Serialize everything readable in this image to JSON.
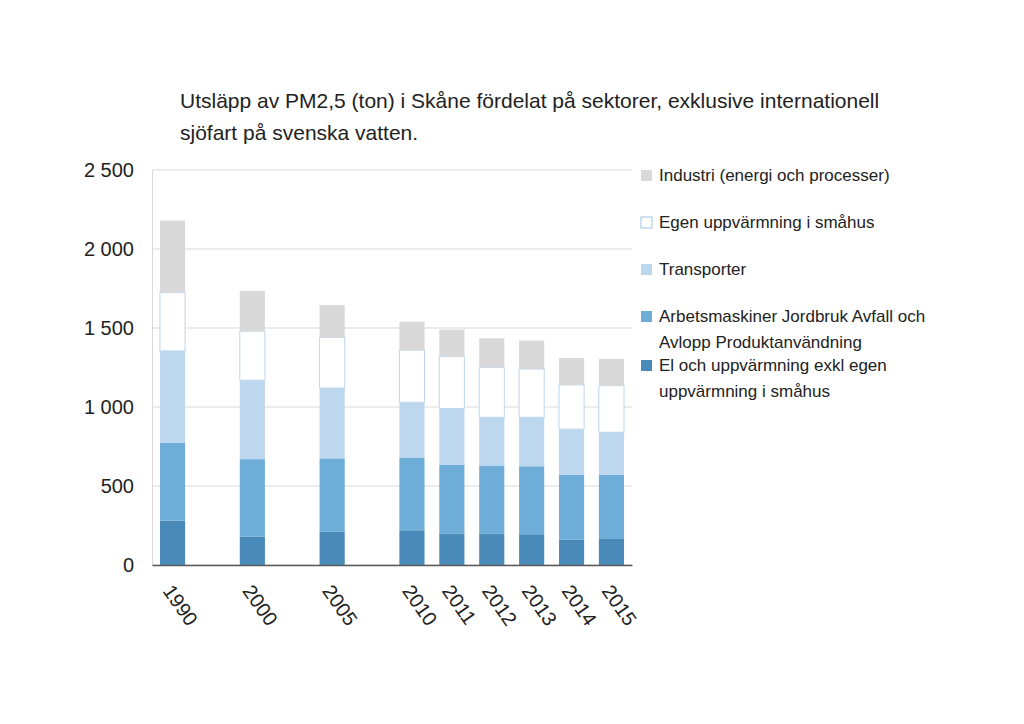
{
  "chart_data": {
    "type": "bar",
    "stacked": true,
    "grid": true,
    "legend": "right",
    "title": "Utsläpp av PM2,5 (ton) i Skåne fördelat på sektorer, exklusive internationell sjöfart på svenska vatten.",
    "categories": [
      "1990",
      null,
      "2000",
      null,
      "2005",
      null,
      "2010",
      "2011",
      "2012",
      "2013",
      "2014",
      "2015"
    ],
    "ylim": [
      0,
      2500
    ],
    "yticks": [
      0,
      500,
      {
        "value": 1000,
        "label": "1 000"
      },
      {
        "value": 1500,
        "label": "1 500"
      },
      {
        "value": 2000,
        "label": "2 000"
      },
      {
        "value": 2500,
        "label": "2 500"
      }
    ],
    "series": [
      {
        "name": "El och uppvärmning exkl egen uppvärmning i småhus",
        "color": "#4a8ab8",
        "values": [
          280,
          null,
          180,
          null,
          210,
          null,
          220,
          200,
          200,
          195,
          160,
          165
        ]
      },
      {
        "name": "Arbetsmaskiner Jordbruk Avfall och Avlopp Produktanvändning",
        "color": "#6fadd9",
        "values": [
          495,
          null,
          490,
          null,
          465,
          null,
          460,
          435,
          430,
          430,
          410,
          405
        ]
      },
      {
        "name": "Transporter",
        "color": "#bdd7ee",
        "values": [
          580,
          null,
          500,
          null,
          445,
          null,
          350,
          355,
          305,
          310,
          290,
          270
        ]
      },
      {
        "name": "Egen uppvärmning i småhus",
        "color": "#ffffff",
        "values": [
          370,
          null,
          310,
          null,
          320,
          null,
          330,
          330,
          315,
          305,
          280,
          295
        ]
      },
      {
        "name": "Industri (energi och processer)",
        "color": "#d9d9d9",
        "values": [
          455,
          null,
          255,
          null,
          205,
          null,
          180,
          170,
          185,
          180,
          170,
          170
        ]
      }
    ]
  }
}
